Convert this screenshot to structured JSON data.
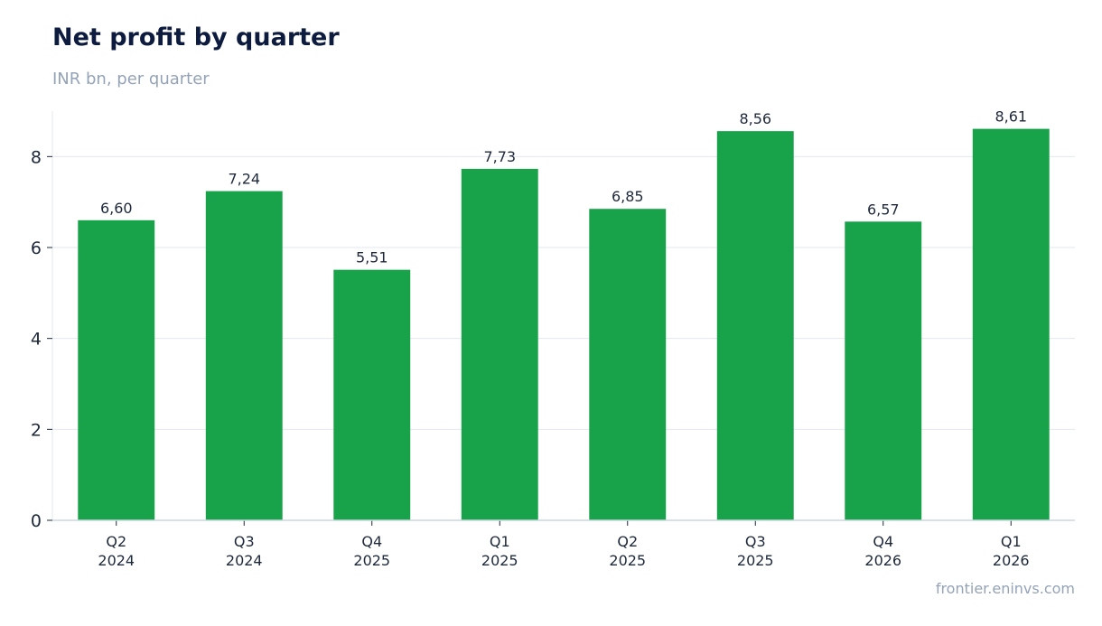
{
  "title": "Net profit by quarter",
  "subtitle": "INR bn, per quarter",
  "source": "frontier.eninvs.com",
  "colors": {
    "bar": "#18a34a",
    "grid": "#e2e8f0",
    "axis": "#cbd5e1",
    "text": "#1e293b"
  },
  "chart_data": {
    "type": "bar",
    "categories": [
      [
        "Q2",
        "2024"
      ],
      [
        "Q3",
        "2024"
      ],
      [
        "Q4",
        "2025"
      ],
      [
        "Q1",
        "2025"
      ],
      [
        "Q2",
        "2025"
      ],
      [
        "Q3",
        "2025"
      ],
      [
        "Q4",
        "2026"
      ],
      [
        "Q1",
        "2026"
      ]
    ],
    "values": [
      6.6,
      7.24,
      5.51,
      7.73,
      6.85,
      8.56,
      6.57,
      8.61
    ],
    "value_labels": [
      "6,60",
      "7,24",
      "5,51",
      "7,73",
      "6,85",
      "8,56",
      "6,57",
      "8,61"
    ],
    "title": "Net profit by quarter",
    "subtitle": "INR bn, per quarter",
    "xlabel": "",
    "ylabel": "",
    "ylim": [
      0,
      9
    ],
    "yticks": [
      0,
      2,
      4,
      6,
      8
    ],
    "grid": true
  }
}
